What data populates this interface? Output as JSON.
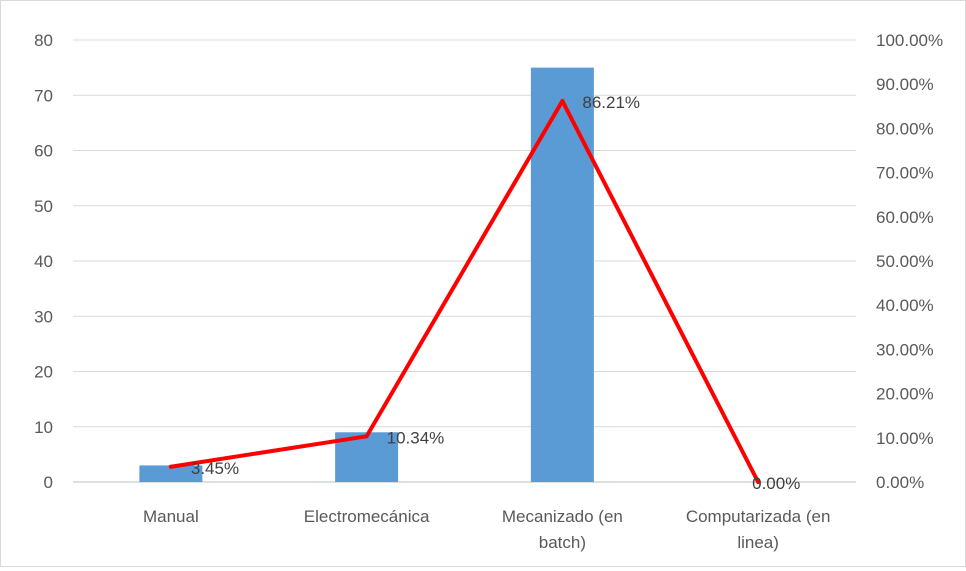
{
  "chart_data": {
    "type": "bar",
    "categories": [
      "Manual",
      "Electromecánica",
      "Mecanizado (en batch)",
      "Computarizada (en linea)"
    ],
    "category_lines": [
      [
        "Manual"
      ],
      [
        "Electromecánica"
      ],
      [
        "Mecanizado (en",
        "batch)"
      ],
      [
        "Computarizada (en",
        "linea)"
      ]
    ],
    "series": [
      {
        "type": "bar",
        "axis": "left",
        "values": [
          3,
          9,
          75,
          0
        ],
        "color": "#5b9bd5"
      },
      {
        "type": "line",
        "axis": "right",
        "values": [
          3.45,
          10.34,
          86.21,
          0.0
        ],
        "labels": [
          "3.45%",
          "10.34%",
          "86.21%",
          "0.00%"
        ],
        "color": "#ff0000"
      }
    ],
    "left_axis": {
      "ylim": [
        0,
        80
      ],
      "ticks": [
        "0",
        "10",
        "20",
        "30",
        "40",
        "50",
        "60",
        "70",
        "80"
      ]
    },
    "right_axis": {
      "ylim": [
        0,
        100
      ],
      "ticks": [
        "0.00%",
        "10.00%",
        "20.00%",
        "30.00%",
        "40.00%",
        "50.00%",
        "60.00%",
        "70.00%",
        "80.00%",
        "90.00%",
        "100.00%"
      ]
    },
    "grid": true,
    "legend": "none"
  }
}
